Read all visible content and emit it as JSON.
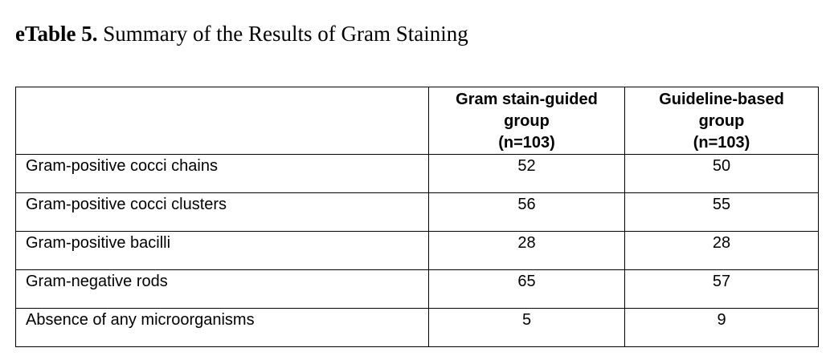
{
  "caption": {
    "label": "eTable 5.",
    "title": "Summary of the Results of Gram Staining"
  },
  "table": {
    "header": {
      "col1": "",
      "col2": [
        "Gram stain-guided",
        "group",
        "(n=103)"
      ],
      "col3": [
        "Guideline-based",
        "group",
        "(n=103)"
      ]
    },
    "rows": [
      {
        "label": "Gram-positive cocci chains",
        "gram": "52",
        "guide": "50"
      },
      {
        "label": "Gram-positive cocci clusters",
        "gram": "56",
        "guide": "55"
      },
      {
        "label": "Gram-positive bacilli",
        "gram": "28",
        "guide": "28"
      },
      {
        "label": "Gram-negative rods",
        "gram": "65",
        "guide": "57"
      },
      {
        "label": "Absence of any microorganisms",
        "gram": "5",
        "guide": "9"
      }
    ]
  }
}
